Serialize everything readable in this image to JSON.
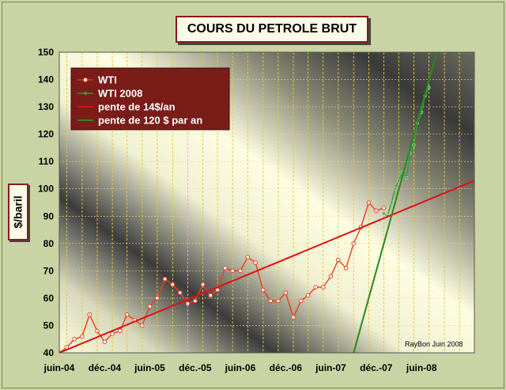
{
  "chart_data": {
    "type": "line",
    "title": "COURS DU PETROLE BRUT",
    "ylabel": "$/baril",
    "ylim": [
      40,
      150
    ],
    "y_ticks": [
      40,
      50,
      60,
      70,
      80,
      90,
      100,
      110,
      120,
      130,
      140,
      150
    ],
    "x_range": [
      "2004-06-01",
      "2008-12-31"
    ],
    "x_ticks": [
      {
        "label": "juin-04",
        "date": "2004-06-01"
      },
      {
        "label": "déc.-04",
        "date": "2004-12-01"
      },
      {
        "label": "juin-05",
        "date": "2005-06-01"
      },
      {
        "label": "déc.-05",
        "date": "2005-12-01"
      },
      {
        "label": "juin-06",
        "date": "2006-06-01"
      },
      {
        "label": "déc.-06",
        "date": "2006-12-01"
      },
      {
        "label": "juin-07",
        "date": "2007-06-01"
      },
      {
        "label": "déc.-07",
        "date": "2007-12-01"
      },
      {
        "label": "juin-08",
        "date": "2008-06-01"
      }
    ],
    "legend_position": "top-left",
    "grid": true,
    "series": [
      {
        "name": "WTI",
        "color": "#e8401c",
        "marker": "circle",
        "points": [
          [
            "2004-06-01",
            40
          ],
          [
            "2004-07-01",
            42
          ],
          [
            "2004-08-01",
            45
          ],
          [
            "2004-09-01",
            46
          ],
          [
            "2004-10-01",
            54
          ],
          [
            "2004-11-01",
            48
          ],
          [
            "2004-12-01",
            44
          ],
          [
            "2005-01-01",
            47
          ],
          [
            "2005-02-01",
            48
          ],
          [
            "2005-03-01",
            54
          ],
          [
            "2005-04-01",
            52
          ],
          [
            "2005-05-01",
            50
          ],
          [
            "2005-06-01",
            57
          ],
          [
            "2005-07-01",
            60
          ],
          [
            "2005-08-01",
            67
          ],
          [
            "2005-09-01",
            65
          ],
          [
            "2005-10-01",
            62
          ],
          [
            "2005-11-01",
            58
          ],
          [
            "2005-12-01",
            59
          ],
          [
            "2006-01-01",
            65
          ],
          [
            "2006-02-01",
            61
          ],
          [
            "2006-03-01",
            63
          ],
          [
            "2006-04-01",
            71
          ],
          [
            "2006-05-01",
            70
          ],
          [
            "2006-06-01",
            70
          ],
          [
            "2006-07-01",
            75
          ],
          [
            "2006-08-01",
            73
          ],
          [
            "2006-09-01",
            63
          ],
          [
            "2006-10-01",
            59
          ],
          [
            "2006-11-01",
            59
          ],
          [
            "2006-12-01",
            62
          ],
          [
            "2007-01-01",
            53
          ],
          [
            "2007-02-01",
            59
          ],
          [
            "2007-03-01",
            61
          ],
          [
            "2007-04-01",
            64
          ],
          [
            "2007-05-01",
            64
          ],
          [
            "2007-06-01",
            68
          ],
          [
            "2007-07-01",
            74
          ],
          [
            "2007-08-01",
            71
          ],
          [
            "2007-09-01",
            80
          ],
          [
            "2007-10-01",
            86
          ],
          [
            "2007-11-01",
            95
          ],
          [
            "2007-12-01",
            92
          ],
          [
            "2008-01-01",
            93
          ]
        ]
      },
      {
        "name": "WTI 2008",
        "color": "#33a33a",
        "marker": "dot",
        "points": [
          [
            "2008-01-01",
            91
          ],
          [
            "2008-01-15",
            90
          ],
          [
            "2008-02-01",
            95
          ],
          [
            "2008-02-15",
            100
          ],
          [
            "2008-03-01",
            103
          ],
          [
            "2008-03-15",
            106
          ],
          [
            "2008-04-01",
            104
          ],
          [
            "2008-04-15",
            113
          ],
          [
            "2008-05-01",
            116
          ],
          [
            "2008-05-15",
            124
          ],
          [
            "2008-06-01",
            128
          ],
          [
            "2008-06-15",
            134
          ],
          [
            "2008-07-01",
            137
          ]
        ]
      },
      {
        "name": "pente de 14$/an",
        "color": "#e01010",
        "marker": "none",
        "points": [
          [
            "2004-06-01",
            40
          ],
          [
            "2008-12-31",
            103
          ]
        ]
      },
      {
        "name": "pente de 120 $ par an",
        "color": "#2a8a1a",
        "marker": "none",
        "points": [
          [
            "2007-09-01",
            40
          ],
          [
            "2008-08-01",
            150
          ]
        ]
      }
    ],
    "annotations": [
      "RayBon Juin 2008"
    ]
  }
}
